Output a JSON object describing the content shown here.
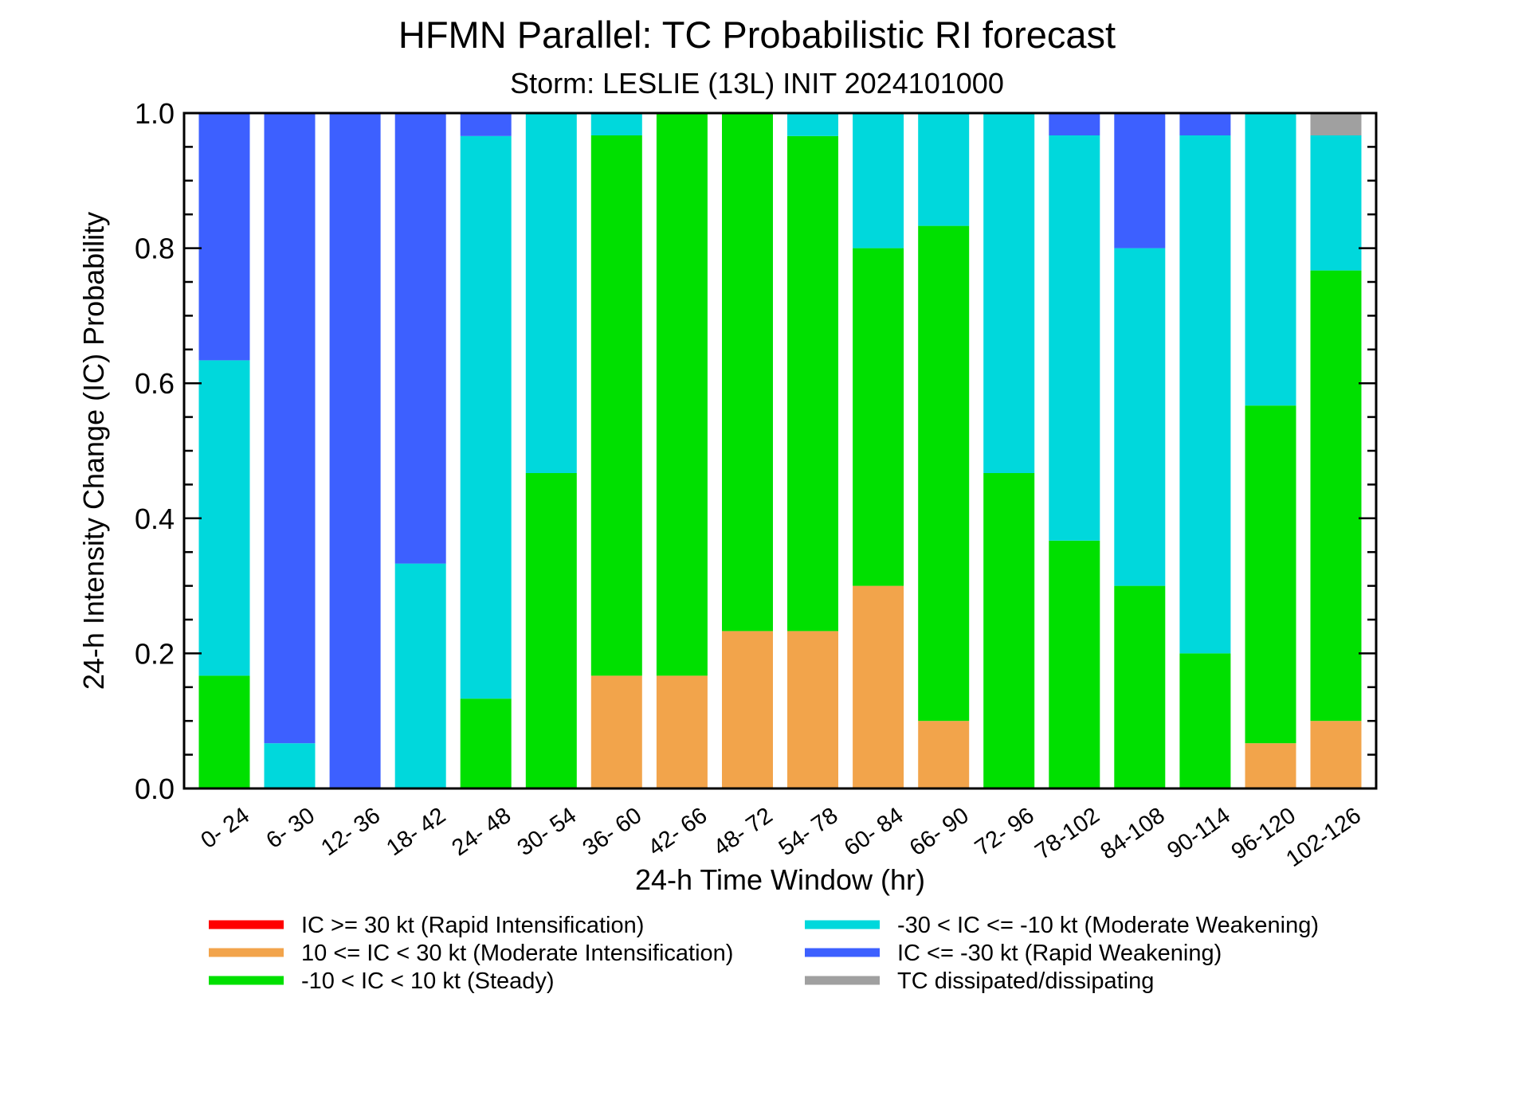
{
  "chart_data": {
    "type": "bar",
    "stacked": true,
    "title": "HFMN Parallel: TC Probabilistic RI forecast",
    "subtitle": "Storm: LESLIE (13L) INIT 2024101000",
    "xlabel": "24-h Time Window (hr)",
    "ylabel": "24-h Intensity Change (IC) Probability",
    "ylim": [
      0,
      1
    ],
    "yticks": [
      "0.0",
      "0.2",
      "0.4",
      "0.6",
      "0.8",
      "1.0"
    ],
    "categories": [
      "0- 24",
      "6- 30",
      "12- 36",
      "18- 42",
      "24- 48",
      "30- 54",
      "36- 60",
      "42- 66",
      "48- 72",
      "54- 78",
      "60- 84",
      "66- 90",
      "72- 96",
      "78-102",
      "84-108",
      "90-114",
      "96-120",
      "102-126"
    ],
    "series": [
      {
        "name": "IC >= 30 kt (Rapid Intensification)",
        "color": "#ff0000",
        "values": [
          0,
          0,
          0,
          0,
          0,
          0,
          0,
          0,
          0,
          0,
          0,
          0,
          0,
          0,
          0,
          0,
          0,
          0
        ]
      },
      {
        "name": "10 <= IC < 30 kt (Moderate Intensification)",
        "color": "#f2a44b",
        "values": [
          0,
          0,
          0,
          0,
          0,
          0,
          0.167,
          0.167,
          0.233,
          0.233,
          0.3,
          0.1,
          0,
          0,
          0,
          0,
          0.067,
          0.1
        ]
      },
      {
        "name": "-10 < IC < 10 kt (Steady)",
        "color": "#00e000",
        "values": [
          0.167,
          0,
          0,
          0,
          0.133,
          0.467,
          0.8,
          0.833,
          0.767,
          0.733,
          0.5,
          0.733,
          0.467,
          0.367,
          0.3,
          0.2,
          0.5,
          0.667
        ]
      },
      {
        "name": "-30 < IC <= -10 kt (Moderate Weakening)",
        "color": "#00d8dc",
        "values": [
          0.467,
          0.067,
          0,
          0.333,
          0.833,
          0.533,
          0.033,
          0,
          0,
          0.033,
          0.2,
          0.167,
          0.533,
          0.6,
          0.5,
          0.767,
          0.433,
          0.2
        ]
      },
      {
        "name": "IC <= -30 kt (Rapid Weakening)",
        "color": "#3d60ff",
        "values": [
          0.367,
          0.933,
          1.0,
          0.667,
          0.033,
          0,
          0,
          0,
          0,
          0,
          0,
          0,
          0,
          0.033,
          0.2,
          0.033,
          0,
          0
        ]
      },
      {
        "name": "TC dissipated/dissipating",
        "color": "#a0a0a0",
        "values": [
          0,
          0,
          0,
          0,
          0,
          0,
          0,
          0,
          0,
          0,
          0,
          0,
          0,
          0,
          0,
          0,
          0,
          0.033
        ]
      }
    ],
    "legend_columns": [
      [
        0,
        1,
        2
      ],
      [
        3,
        4,
        5
      ]
    ],
    "legend_position": "bottom",
    "grid": false
  }
}
